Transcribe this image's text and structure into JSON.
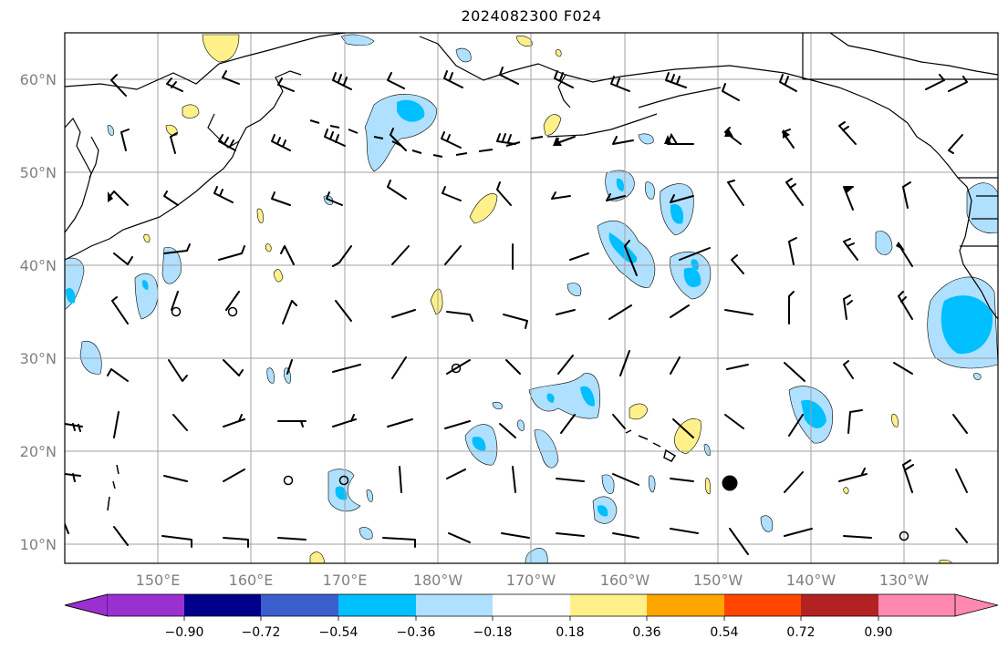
{
  "title": "2024082300 F024",
  "map": {
    "lat_labels": [
      "60°N",
      "50°N",
      "40°N",
      "30°N",
      "20°N",
      "10°N"
    ],
    "lon_labels": [
      "150°E",
      "160°E",
      "170°E",
      "180°W",
      "170°W",
      "160°W",
      "150°W",
      "140°W",
      "130°W"
    ],
    "grid": true
  },
  "colorbar": {
    "labels": [
      "−0.90",
      "−0.72",
      "−0.54",
      "−0.36",
      "−0.18",
      "0.18",
      "0.36",
      "0.54",
      "0.72",
      "0.90"
    ],
    "colors": [
      "#9b30d0",
      "#00008b",
      "#3a5fcd",
      "#00bfff",
      "#b0e0ff",
      "#ffffff",
      "#fff08a",
      "#ffa500",
      "#ff4500",
      "#b22222",
      "#ff88b0"
    ]
  },
  "colors": {
    "light_blue": "#b0e0ff",
    "mid_blue": "#00bfff",
    "yellow": "#fff08a",
    "grid": "#a0a0a0",
    "label_gray": "#808080"
  }
}
